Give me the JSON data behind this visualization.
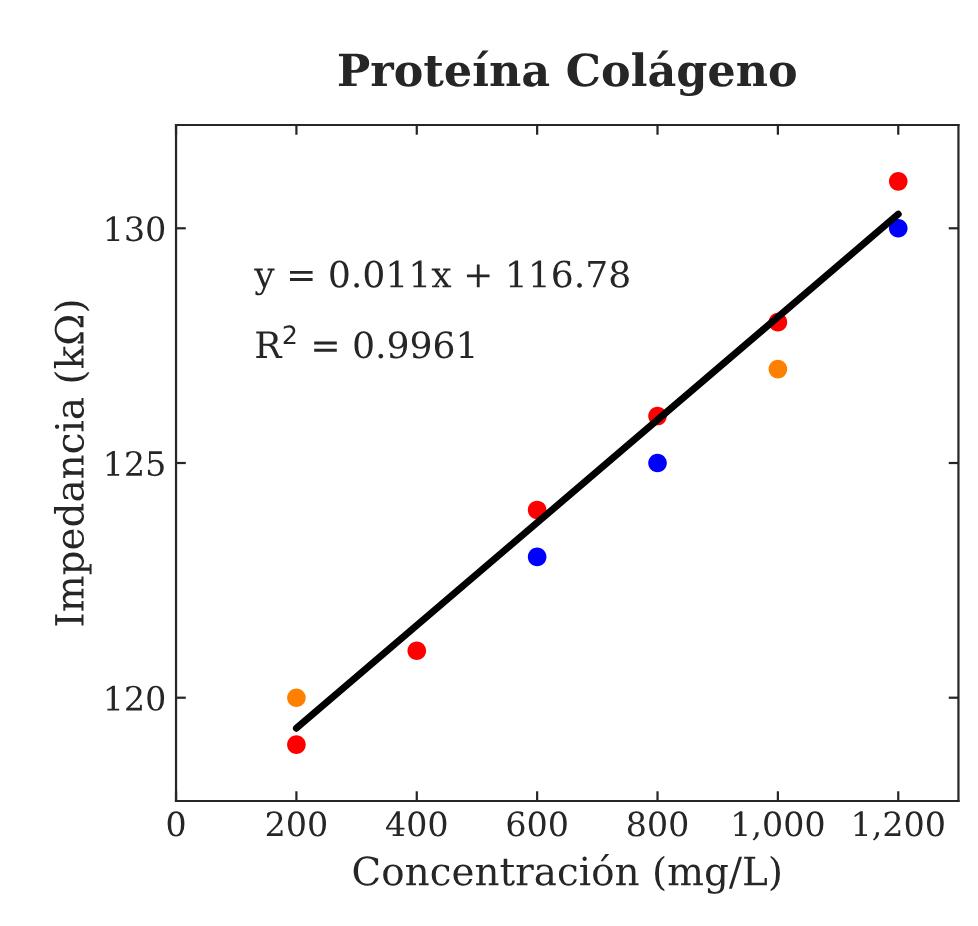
{
  "chart_data": {
    "type": "scatter",
    "title": "Proteína Colágeno",
    "xlabel": "Concentración (mg/L)",
    "ylabel": "Impedancia (kΩ)",
    "xlim": [
      0,
      1300
    ],
    "xticks": [
      0,
      200,
      400,
      600,
      800,
      {
        "value": 1000,
        "label": "1,000"
      },
      {
        "value": 1200,
        "label": "1,200"
      }
    ],
    "ylim": [
      117.8,
      132.2
    ],
    "yticks": [
      120,
      125,
      130
    ],
    "grid": false,
    "series": [
      {
        "color": "#ff0000",
        "marker": "circle",
        "x": [
          200,
          400,
          600,
          800,
          1000,
          1200
        ],
        "values": [
          119,
          121,
          124,
          126,
          128,
          131
        ]
      },
      {
        "color": "#0000ff",
        "marker": "circle",
        "x": [
          600,
          800,
          1200
        ],
        "values": [
          123,
          125,
          130
        ]
      },
      {
        "color": "#ff8000",
        "marker": "circle",
        "x": [
          200,
          1000
        ],
        "values": [
          120,
          127
        ]
      },
      {
        "type": "line",
        "color": "#000000",
        "x": [
          200,
          1200
        ],
        "values": [
          119.35,
          130.3
        ]
      }
    ],
    "annotations": [
      "y = 0.011x + 116.78",
      "R$^{2}$ = 0.9961"
    ]
  }
}
